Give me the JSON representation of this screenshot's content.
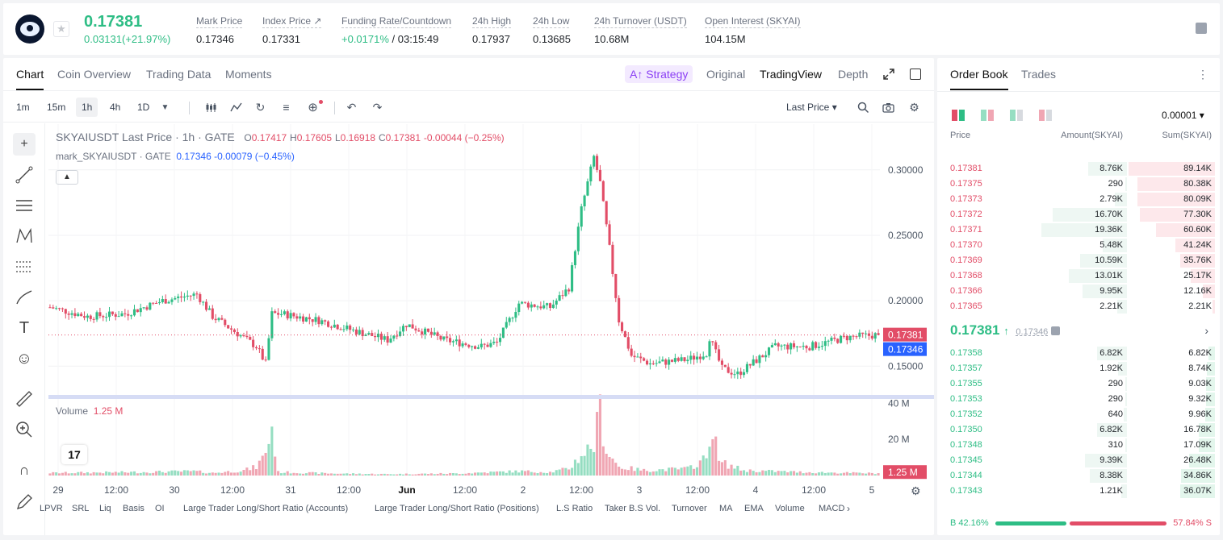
{
  "header": {
    "last_price": "0.17381",
    "change": "0.03131(+21.97%)",
    "stats": [
      {
        "label": "Mark Price",
        "value": "0.17346"
      },
      {
        "label": "Index Price ↗",
        "value": "0.17331"
      },
      {
        "label": "Funding Rate/Countdown",
        "value_green": "+0.0171%",
        "value": " / 03:15:49"
      },
      {
        "label": "24h High",
        "value": "0.17937"
      },
      {
        "label": "24h Low",
        "value": "0.13685"
      },
      {
        "label": "24h Turnover (USDT)",
        "value": "10.68M"
      },
      {
        "label": "Open Interest (SKYAI)",
        "value": "104.15M"
      }
    ]
  },
  "chart_tabs": [
    "Chart",
    "Coin Overview",
    "Trading Data",
    "Moments"
  ],
  "view_tabs": {
    "strategy": "A↑ Strategy",
    "original": "Original",
    "tradingview": "TradingView",
    "depth": "Depth"
  },
  "intervals": [
    "1m",
    "15m",
    "1h",
    "4h",
    "1D"
  ],
  "price_selector": "Last Price",
  "legend": {
    "title": "SKYAIUSDT Last Price · 1h · GATE",
    "o": "0.17417",
    "h": "0.17605",
    "l": "0.16918",
    "c": "0.17381",
    "chg": "-0.00044 (−0.25%)",
    "mark_name": "mark_SKYAIUSDT · GATE",
    "mark_val": "0.17346 -0.00079 (−0.45%)",
    "vol_label": "Volume",
    "vol_val": "1.25 M"
  },
  "indicators": [
    "LPVR",
    "SRL",
    "Liq",
    "Basis",
    "OI",
    "Large Trader Long/Short Ratio (Accounts)",
    "Large Trader Long/Short Ratio (Positions)",
    "L.S Ratio",
    "Taker B.S Vol.",
    "Turnover",
    "MA",
    "EMA",
    "Volume",
    "MACD"
  ],
  "chart_data": {
    "type": "candlestick",
    "symbol": "SKYAIUSDT",
    "interval": "1h",
    "price_axis": [
      0.15,
      0.2,
      0.25,
      0.3
    ],
    "price_axis_labels": [
      "0.15000",
      "0.20000",
      "0.25000",
      "0.30000"
    ],
    "ylim": [
      0.128,
      0.335
    ],
    "volume_axis_labels": [
      "20 M",
      "40 M"
    ],
    "volume_ylim": [
      0,
      42
    ],
    "x_tick_labels": [
      "29",
      "12:00",
      "30",
      "12:00",
      "31",
      "12:00",
      "Jun",
      "12:00",
      "2",
      "12:00",
      "3",
      "12:00",
      "4",
      "12:00",
      "5"
    ],
    "last_price_label": "0.17381",
    "mark_price_label": "0.17346",
    "last_volume_label": "1.25 M",
    "close_anchors": [
      [
        0,
        0.195
      ],
      [
        12,
        0.188
      ],
      [
        24,
        0.19
      ],
      [
        36,
        0.2
      ],
      [
        47,
        0.205
      ],
      [
        52,
        0.188
      ],
      [
        60,
        0.175
      ],
      [
        66,
        0.165
      ],
      [
        69,
        0.152
      ],
      [
        71,
        0.19
      ],
      [
        74,
        0.19
      ],
      [
        86,
        0.185
      ],
      [
        96,
        0.178
      ],
      [
        108,
        0.17
      ],
      [
        114,
        0.182
      ],
      [
        126,
        0.17
      ],
      [
        138,
        0.165
      ],
      [
        143,
        0.168
      ],
      [
        150,
        0.198
      ],
      [
        160,
        0.195
      ],
      [
        166,
        0.21
      ],
      [
        170,
        0.27
      ],
      [
        174,
        0.31
      ],
      [
        176,
        0.29
      ],
      [
        179,
        0.24
      ],
      [
        182,
        0.185
      ],
      [
        186,
        0.158
      ],
      [
        192,
        0.152
      ],
      [
        204,
        0.155
      ],
      [
        210,
        0.16
      ],
      [
        211,
        0.172
      ],
      [
        215,
        0.148
      ],
      [
        220,
        0.144
      ],
      [
        232,
        0.165
      ],
      [
        243,
        0.165
      ],
      [
        255,
        0.172
      ],
      [
        265,
        0.174
      ]
    ],
    "volume_anchors": [
      [
        0,
        1.5
      ],
      [
        30,
        2
      ],
      [
        46,
        2.5
      ],
      [
        52,
        1.5
      ],
      [
        62,
        3
      ],
      [
        66,
        5
      ],
      [
        68,
        10
      ],
      [
        70,
        20
      ],
      [
        71,
        28
      ],
      [
        73,
        2
      ],
      [
        90,
        1.2
      ],
      [
        108,
        0.8
      ],
      [
        130,
        1.2
      ],
      [
        150,
        2.5
      ],
      [
        160,
        2
      ],
      [
        166,
        4
      ],
      [
        170,
        12
      ],
      [
        174,
        18
      ],
      [
        176,
        38
      ],
      [
        178,
        15
      ],
      [
        182,
        5
      ],
      [
        190,
        3
      ],
      [
        204,
        4
      ],
      [
        210,
        10
      ],
      [
        211,
        26
      ],
      [
        212,
        27
      ],
      [
        214,
        8
      ],
      [
        222,
        3
      ],
      [
        240,
        2
      ],
      [
        265,
        1.25
      ]
    ],
    "candle_count": 266
  },
  "orderbook": {
    "tabs": [
      "Order Book",
      "Trades"
    ],
    "precision": "0.00001 ▾",
    "headers": [
      "Price",
      "Amount(SKYAI)",
      "Sum(SKYAI)"
    ],
    "asks": [
      {
        "price": "0.17381",
        "amount": "8.76K",
        "sum": "89.14K"
      },
      {
        "price": "0.17375",
        "amount": "290",
        "sum": "80.38K"
      },
      {
        "price": "0.17373",
        "amount": "2.79K",
        "sum": "80.09K"
      },
      {
        "price": "0.17372",
        "amount": "16.70K",
        "sum": "77.30K"
      },
      {
        "price": "0.17371",
        "amount": "19.36K",
        "sum": "60.60K"
      },
      {
        "price": "0.17370",
        "amount": "5.48K",
        "sum": "41.24K"
      },
      {
        "price": "0.17369",
        "amount": "10.59K",
        "sum": "35.76K"
      },
      {
        "price": "0.17368",
        "amount": "13.01K",
        "sum": "25.17K"
      },
      {
        "price": "0.17366",
        "amount": "9.95K",
        "sum": "12.16K"
      },
      {
        "price": "0.17365",
        "amount": "2.21K",
        "sum": "2.21K"
      }
    ],
    "mid_price": "0.17381",
    "mid_mark": "0.17346",
    "bids": [
      {
        "price": "0.17358",
        "amount": "6.82K",
        "sum": "6.82K"
      },
      {
        "price": "0.17357",
        "amount": "1.92K",
        "sum": "8.74K"
      },
      {
        "price": "0.17355",
        "amount": "290",
        "sum": "9.03K"
      },
      {
        "price": "0.17353",
        "amount": "290",
        "sum": "9.32K"
      },
      {
        "price": "0.17352",
        "amount": "640",
        "sum": "9.96K"
      },
      {
        "price": "0.17350",
        "amount": "6.82K",
        "sum": "16.78K"
      },
      {
        "price": "0.17348",
        "amount": "310",
        "sum": "17.09K"
      },
      {
        "price": "0.17345",
        "amount": "9.39K",
        "sum": "26.48K"
      },
      {
        "price": "0.17344",
        "amount": "8.38K",
        "sum": "34.86K"
      },
      {
        "price": "0.17343",
        "amount": "1.21K",
        "sum": "36.07K"
      }
    ],
    "buy_ratio": "B 42.16%",
    "sell_ratio": "57.84% S"
  },
  "colors": {
    "up": "#2ebd85",
    "down": "#e24d67",
    "mark": "#2962ff",
    "strategy": "#8b3ff4"
  },
  "icons": [
    "crosshair-icon",
    "trend-line-icon",
    "fib-icon",
    "pattern-icon",
    "prediction-icon",
    "brush-icon",
    "text-icon",
    "emoji-icon",
    "ruler-icon",
    "zoom-in-icon",
    "magnet-icon",
    "pencil-icon",
    "settings-icon",
    "camera-icon",
    "search-icon"
  ]
}
